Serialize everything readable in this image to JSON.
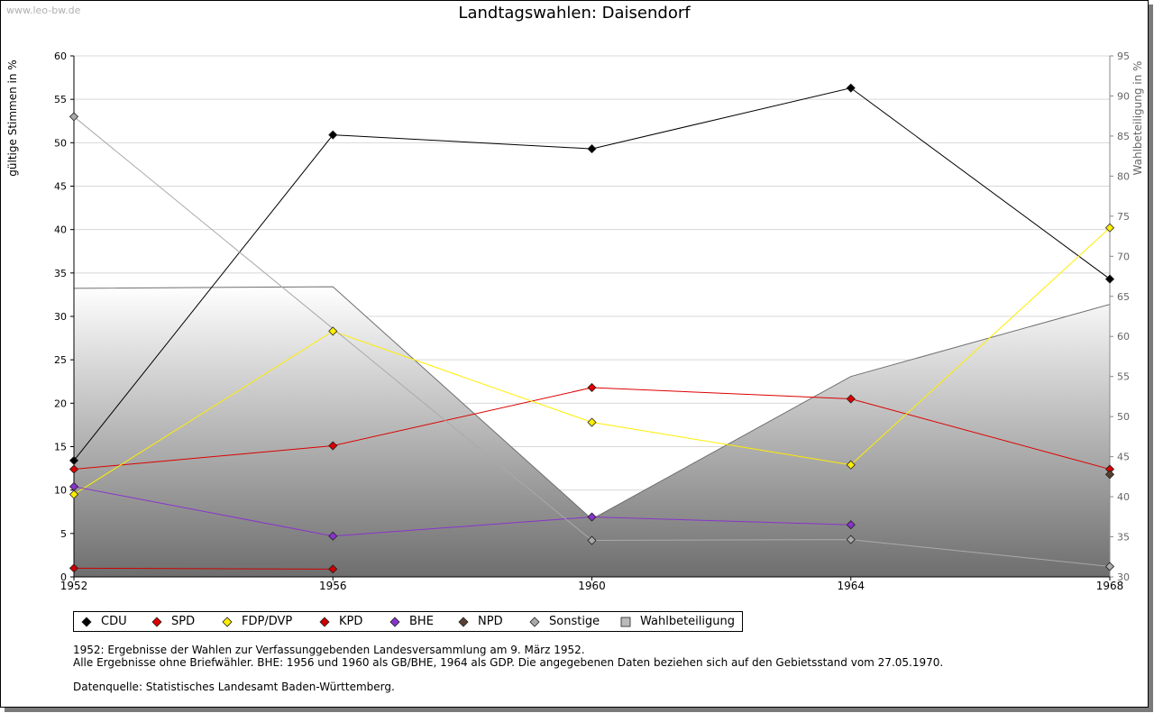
{
  "watermark": "www.leo-bw.de",
  "chart_data": {
    "type": "line",
    "title": "Landtagswahlen: Daisendorf",
    "ylabel": "gültige Stimmen in %",
    "y2label": "Wahlbeteiligung in %",
    "x": [
      1952,
      1956,
      1960,
      1964,
      1968
    ],
    "ylim": [
      0,
      60
    ],
    "yticks": [
      0,
      5,
      10,
      15,
      20,
      25,
      30,
      35,
      40,
      45,
      50,
      55,
      60
    ],
    "y2lim": [
      30,
      95
    ],
    "y2ticks": [
      30,
      35,
      40,
      45,
      50,
      55,
      60,
      65,
      70,
      75,
      80,
      85,
      90,
      95
    ],
    "grid": true,
    "legend_position": "bottom",
    "area_series": {
      "name": "Wahlbeteiligung",
      "axis": "right",
      "values": [
        66.0,
        66.2,
        37.2,
        55.0,
        64.0
      ]
    },
    "series": [
      {
        "name": "CDU",
        "color": "#000000",
        "values": [
          13.4,
          50.9,
          49.3,
          56.3,
          34.3
        ]
      },
      {
        "name": "SPD",
        "color": "#dd0000",
        "values": [
          12.4,
          15.1,
          21.8,
          20.5,
          12.4
        ]
      },
      {
        "name": "FDP/DVP",
        "color": "#ffee00",
        "values": [
          9.5,
          28.3,
          17.8,
          12.9,
          40.2
        ]
      },
      {
        "name": "KPD",
        "color": "#cc0000",
        "values": [
          1.0,
          0.9,
          null,
          null,
          null
        ]
      },
      {
        "name": "BHE",
        "color": "#8833cc",
        "values": [
          10.4,
          4.7,
          6.9,
          6.0,
          null
        ]
      },
      {
        "name": "NPD",
        "color": "#5a4030",
        "values": [
          null,
          null,
          null,
          null,
          11.8
        ]
      },
      {
        "name": "Sonstige",
        "color": "#aaaaaa",
        "values": [
          53.0,
          null,
          4.2,
          4.3,
          1.2
        ]
      }
    ],
    "legend": [
      {
        "name": "CDU",
        "color": "#000000",
        "marker": "diamond"
      },
      {
        "name": "SPD",
        "color": "#dd0000",
        "marker": "diamond"
      },
      {
        "name": "FDP/DVP",
        "color": "#ffee00",
        "marker": "diamond"
      },
      {
        "name": "KPD",
        "color": "#cc0000",
        "marker": "diamond"
      },
      {
        "name": "BHE",
        "color": "#8833cc",
        "marker": "diamond"
      },
      {
        "name": "NPD",
        "color": "#5a4030",
        "marker": "diamond"
      },
      {
        "name": "Sonstige",
        "color": "#aaaaaa",
        "marker": "diamond"
      },
      {
        "name": "Wahlbeteiligung",
        "color": "#bbbbbb",
        "marker": "square"
      }
    ]
  },
  "notes": {
    "line1": "1952: Ergebnisse der Wahlen zur Verfassunggebenden Landesversammlung am 9. März 1952.",
    "line2": "Alle Ergebnisse ohne Briefwähler. BHE: 1956 und 1960 als GB/BHE, 1964 als GDP. Die angegebenen Daten beziehen sich auf den Gebietsstand vom 27.05.1970.",
    "source": "Datenquelle: Statistisches Landesamt Baden-Württemberg."
  }
}
